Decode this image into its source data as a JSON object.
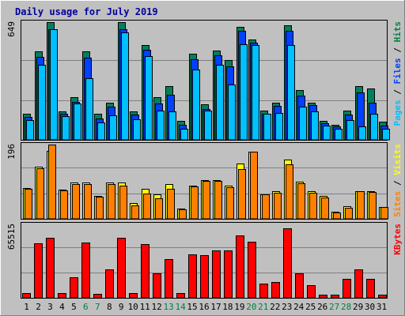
{
  "chart_data": {
    "type": "bar",
    "title": "Daily usage for July 2019",
    "categories": [
      "1",
      "2",
      "3",
      "4",
      "5",
      "6",
      "7",
      "8",
      "9",
      "10",
      "11",
      "12",
      "13",
      "14",
      "15",
      "16",
      "17",
      "18",
      "19",
      "20",
      "21",
      "22",
      "23",
      "24",
      "25",
      "26",
      "27",
      "28",
      "29",
      "30",
      "31"
    ],
    "weekend_days": [
      "6",
      "7",
      "13",
      "14",
      "20",
      "21",
      "27",
      "28"
    ],
    "panels": [
      {
        "id": "top",
        "ymax": 649,
        "ymax_label": "649",
        "right_label": [
          {
            "text": "Pages",
            "color": "#00c0ff"
          },
          {
            "text": " / ",
            "color": "#000000"
          },
          {
            "text": "Files",
            "color": "#0040ff"
          },
          {
            "text": " / ",
            "color": "#000000"
          },
          {
            "text": "Hits",
            "color": "#008040"
          }
        ],
        "series": [
          {
            "name": "Hits",
            "color": "#00805c",
            "values": [
              145,
              488,
              649,
              157,
              237,
              488,
              142,
              206,
              649,
              157,
              522,
              235,
              298,
              104,
              474,
              194,
              494,
              442,
              621,
              554,
              162,
              206,
              633,
              273,
              206,
              106,
              83,
              159,
              298,
              285,
              99
            ]
          },
          {
            "name": "Files",
            "color": "#0040ff",
            "values": [
              125,
              457,
              608,
              142,
              209,
              452,
              118,
              182,
              608,
              141,
              496,
              201,
              250,
              82,
              445,
              172,
              468,
              403,
              600,
              536,
              144,
              189,
              602,
              246,
              191,
              90,
              74,
              138,
              262,
              206,
              79
            ]
          },
          {
            "name": "Pages",
            "color": "#00c0ff",
            "values": [
              110,
              414,
              608,
              131,
              201,
              341,
              98,
              137,
              594,
              112,
              460,
              159,
              157,
              60,
              388,
              161,
              412,
              307,
              526,
              524,
              144,
              146,
              522,
              184,
              155,
              79,
              60,
              109,
              74,
              145,
              63
            ]
          }
        ]
      },
      {
        "id": "middle",
        "ymax": 196,
        "ymax_label": "196",
        "right_label": [
          {
            "text": "Sites",
            "color": "#ff8000"
          },
          {
            "text": " / ",
            "color": "#000000"
          },
          {
            "text": "Visits",
            "color": "#ffff00"
          }
        ],
        "series": [
          {
            "name": "Visits",
            "color": "#ffff00",
            "values": [
              82,
              137,
              179,
              77,
              95,
              95,
              61,
              95,
              95,
              41,
              80,
              65,
              92,
              28,
              87,
              103,
              103,
              87,
              145,
              178,
              65,
              72,
              157,
              98,
              72,
              61,
              19,
              33,
              74,
              73,
              32
            ]
          },
          {
            "name": "Sites",
            "color": "#ff8000",
            "values": [
              80,
              133,
              195,
              75,
              91,
              91,
              59,
              92,
              88,
              36,
              67,
              55,
              79,
              26,
              85,
              101,
              101,
              84,
              132,
              178,
              65,
              68,
              143,
              94,
              69,
              57,
              16,
              30,
              72,
              71,
              31
            ]
          }
        ]
      },
      {
        "id": "bottom",
        "ymax": 65515,
        "ymax_label": "65515",
        "right_label": [
          {
            "text": "KBytes",
            "color": "#ff0000"
          }
        ],
        "series": [
          {
            "name": "KBytes",
            "color": "#ff0000",
            "values": [
              4200,
              48600,
              53400,
              4200,
              18000,
              49000,
              3500,
              25300,
              53400,
              4200,
              47600,
              22000,
              34600,
              4200,
              38700,
              38300,
              42400,
              42400,
              55800,
              50200,
              12700,
              14100,
              62300,
              21500,
              11300,
              2800,
              2800,
              16900,
              25500,
              16900,
              2800
            ]
          }
        ]
      }
    ]
  }
}
